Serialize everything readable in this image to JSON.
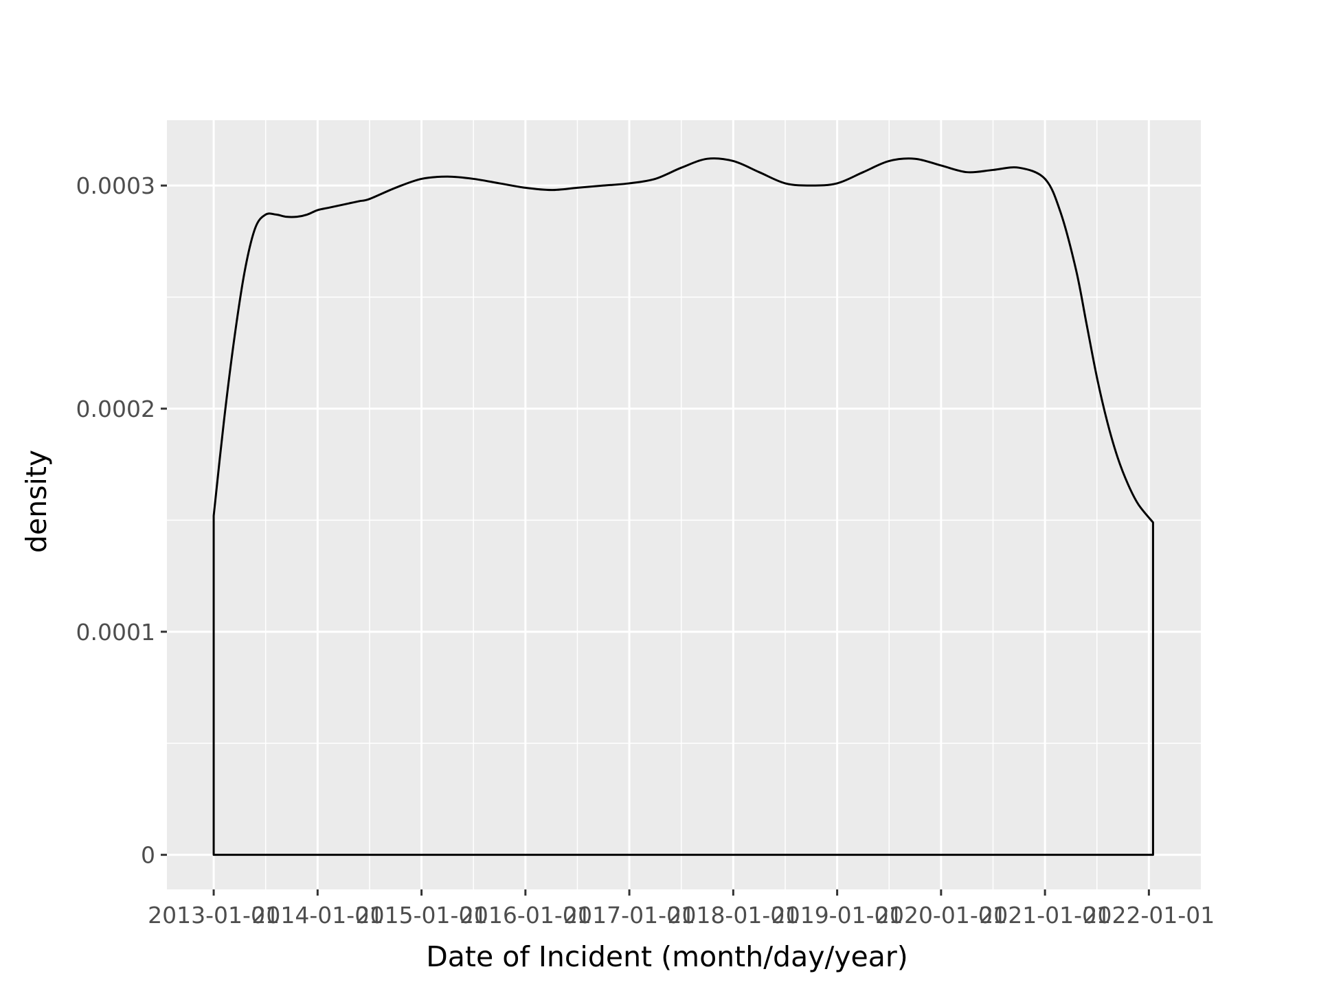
{
  "chart_data": {
    "type": "area",
    "xlabel": "Date of Incident (month/day/year)",
    "ylabel": "density",
    "x_tick_labels": [
      "2013-01-01",
      "2014-01-01",
      "2015-01-01",
      "2016-01-01",
      "2017-01-01",
      "2018-01-01",
      "2019-01-01",
      "2020-01-01",
      "2021-01-01",
      "2022-01-01"
    ],
    "y_tick_labels": [
      "0",
      "0.0001",
      "0.0002",
      "0.0003"
    ],
    "y_ticks": [
      0,
      0.0001,
      0.0002,
      0.0003
    ],
    "x_ticks": [
      2013,
      2014,
      2015,
      2016,
      2017,
      2018,
      2019,
      2020,
      2021,
      2022
    ],
    "xlim": [
      2012.55,
      2022.5
    ],
    "ylim": [
      -1.55e-05,
      0.0003293
    ],
    "grid": true,
    "fill": "none",
    "series": [
      {
        "x": [
          2013.0,
          2013.1,
          2013.2,
          2013.3,
          2013.4,
          2013.5,
          2013.6,
          2013.7,
          2013.8,
          2013.9,
          2014.0,
          2014.1,
          2014.2,
          2014.3,
          2014.4,
          2014.5,
          2014.75,
          2015.0,
          2015.25,
          2015.5,
          2015.75,
          2016.0,
          2016.25,
          2016.5,
          2016.75,
          2017.0,
          2017.25,
          2017.5,
          2017.75,
          2018.0,
          2018.25,
          2018.5,
          2018.75,
          2019.0,
          2019.25,
          2019.5,
          2019.75,
          2020.0,
          2020.25,
          2020.5,
          2020.75,
          2021.0,
          2021.15,
          2021.3,
          2021.4,
          2021.5,
          2021.6,
          2021.7,
          2021.8,
          2021.9,
          2022.04
        ],
        "y": [
          0.000152,
          0.000195,
          0.000232,
          0.000262,
          0.000281,
          0.000287,
          0.000287,
          0.000286,
          0.000286,
          0.000287,
          0.000289,
          0.00029,
          0.000291,
          0.000292,
          0.000293,
          0.000294,
          0.000299,
          0.000303,
          0.000304,
          0.000303,
          0.000301,
          0.000299,
          0.000298,
          0.000299,
          0.0003,
          0.000301,
          0.000303,
          0.000308,
          0.000312,
          0.000311,
          0.000306,
          0.000301,
          0.0003,
          0.000301,
          0.000306,
          0.000311,
          0.000312,
          0.000309,
          0.000306,
          0.000307,
          0.000308,
          0.000303,
          0.000288,
          0.000262,
          0.000238,
          0.000214,
          0.000194,
          0.000178,
          0.000166,
          0.000157,
          0.000149
        ]
      }
    ]
  }
}
